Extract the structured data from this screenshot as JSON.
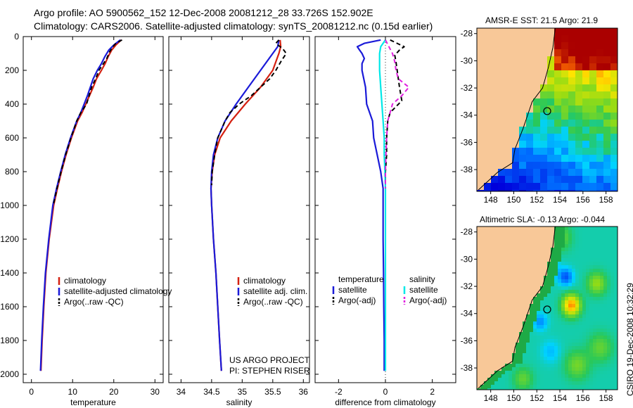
{
  "header": {
    "line1": "Argo profile: AO 5900562_152 12-Dec-2008 20081212_28 33.726S 152.902E",
    "line2": "Climatology: CARS2006. Satellite-adjusted climatology: synTS_20081212.nc (0.15d earlier)"
  },
  "footer": {
    "project": "US ARGO PROJECT",
    "pi": "PI: STEPHEN RISER",
    "stamp": "CSIRO 19-Dec-2008 10:32:29"
  },
  "colors": {
    "climatology": "#d42010",
    "satellite": "#1a1ad8",
    "argo": "#000000",
    "sat_sal": "#00e8e8",
    "argo_sal": "#e020e0",
    "land": "#f8c898"
  },
  "chart_data": [
    {
      "type": "line",
      "id": "temperature",
      "xlabel": "temperature",
      "xlim": [
        -2,
        32
      ],
      "ylim": [
        2050,
        0
      ],
      "x_ticks": [
        "0",
        "10",
        "20",
        "30"
      ],
      "x_tick_values": [
        0,
        10,
        20,
        30
      ],
      "y_ticks": [
        "0",
        "200",
        "400",
        "600",
        "800",
        "1000",
        "1200",
        "1400",
        "1600",
        "1800",
        "2000"
      ],
      "y_tick_values": [
        0,
        200,
        400,
        600,
        800,
        1000,
        1200,
        1400,
        1600,
        1800,
        2000
      ],
      "legend": [
        "climatology",
        "satellite-adjusted climatology",
        "Argo(..raw -QC)"
      ],
      "series": [
        {
          "name": "climatology",
          "color": "#d42010",
          "dash": "",
          "depth": [
            20,
            50,
            80,
            120,
            160,
            200,
            250,
            300,
            350,
            400,
            450,
            500,
            600,
            700,
            800,
            900,
            1000,
            1200,
            1400,
            1600,
            1800,
            1980
          ],
          "values": [
            21.8,
            20.5,
            19.5,
            18.6,
            17.9,
            17.0,
            15.8,
            15.0,
            14.1,
            13.2,
            12.3,
            11.2,
            9.7,
            8.4,
            7.3,
            6.3,
            5.4,
            4.3,
            3.5,
            3.0,
            2.6,
            2.3
          ]
        },
        {
          "name": "satellite-adjusted climatology",
          "color": "#1a1ad8",
          "dash": "",
          "depth": [
            20,
            50,
            80,
            120,
            160,
            200,
            250,
            300,
            350,
            400,
            450,
            500,
            600,
            700,
            800,
            900,
            1000,
            1200,
            1400,
            1600,
            1800,
            1980
          ],
          "values": [
            21.6,
            20.0,
            18.8,
            17.8,
            17.0,
            16.0,
            15.0,
            14.3,
            13.6,
            12.8,
            12.0,
            11.0,
            9.5,
            8.2,
            7.1,
            6.1,
            5.2,
            4.2,
            3.4,
            2.9,
            2.5,
            2.2
          ]
        },
        {
          "name": "Argo(..raw -QC)",
          "color": "#000000",
          "dash": "6,4",
          "depth": [
            20,
            40,
            60,
            90,
            130,
            160,
            200,
            250,
            300,
            350,
            400,
            450,
            500,
            600,
            700,
            800,
            900,
            1000
          ],
          "values": [
            22.0,
            20.5,
            19.8,
            19.0,
            18.3,
            17.5,
            16.4,
            15.6,
            14.6,
            14.0,
            13.4,
            12.0,
            11.0,
            9.6,
            8.3,
            7.2,
            6.2,
            5.3
          ]
        }
      ]
    },
    {
      "type": "line",
      "id": "salinity",
      "xlabel": "salinity",
      "xlim": [
        33.8,
        36.1
      ],
      "ylim": [
        2050,
        0
      ],
      "x_ticks": [
        "34",
        "34.5",
        "35",
        "35.5",
        "36"
      ],
      "x_tick_values": [
        34,
        34.5,
        35,
        35.5,
        36
      ],
      "legend": [
        "climatology",
        "satellite adj. clim.",
        "Argo(..raw -QC)"
      ],
      "series": [
        {
          "name": "climatology",
          "color": "#d42010",
          "dash": "",
          "depth": [
            20,
            60,
            100,
            200,
            300,
            400,
            500,
            600,
            700,
            800,
            900,
            1000,
            1200,
            1400,
            1600,
            1800,
            1980
          ],
          "values": [
            35.62,
            35.63,
            35.6,
            35.5,
            35.3,
            35.05,
            34.82,
            34.64,
            34.55,
            34.51,
            34.49,
            34.5,
            34.53,
            34.57,
            34.6,
            34.63,
            34.66
          ]
        },
        {
          "name": "satellite adj. clim.",
          "color": "#1a1ad8",
          "dash": "",
          "depth": [
            20,
            60,
            100,
            200,
            300,
            400,
            500,
            600,
            700,
            800,
            900,
            1000,
            1200,
            1400,
            1600,
            1800,
            1980
          ],
          "values": [
            35.6,
            35.58,
            35.5,
            35.3,
            35.1,
            34.9,
            34.72,
            34.6,
            34.53,
            34.5,
            34.49,
            34.5,
            34.53,
            34.57,
            34.6,
            34.63,
            34.66
          ]
        },
        {
          "name": "Argo(..raw -QC)",
          "color": "#000000",
          "dash": "6,4",
          "depth": [
            20,
            40,
            60,
            80,
            100,
            150,
            200,
            250,
            300,
            350,
            400,
            450,
            500,
            600,
            700,
            800,
            880
          ],
          "values": [
            35.6,
            35.55,
            35.62,
            35.68,
            35.72,
            35.63,
            35.55,
            35.45,
            35.3,
            35.15,
            34.95,
            34.8,
            34.72,
            34.6,
            34.55,
            34.51,
            34.5
          ]
        }
      ]
    },
    {
      "type": "line",
      "id": "difference",
      "xlabel": "difference from climatology",
      "xlim": [
        -3.0,
        3.0
      ],
      "ylim": [
        2050,
        0
      ],
      "x_ticks": [
        "-2",
        "0",
        "2"
      ],
      "x_tick_values": [
        -2,
        0,
        2
      ],
      "legend_headers": [
        "temperature",
        "salinity"
      ],
      "legend": [
        "satellite",
        "Argo(-adj)",
        "satellite",
        "Argo(-adj)"
      ],
      "series": [
        {
          "name": "temperature satellite",
          "color": "#1a1ad8",
          "dash": "",
          "depth": [
            20,
            40,
            60,
            80,
            100,
            130,
            160,
            200,
            300,
            400,
            500,
            600,
            700,
            800,
            900,
            1000,
            1200,
            1400,
            1600,
            1800,
            1980
          ],
          "values": [
            -0.2,
            -0.9,
            -1.2,
            -1.1,
            -1.0,
            -0.9,
            -1.0,
            -1.0,
            -0.85,
            -0.8,
            -0.55,
            -0.5,
            -0.35,
            -0.2,
            -0.1,
            -0.1,
            -0.1,
            -0.08,
            -0.07,
            -0.05,
            -0.05
          ]
        },
        {
          "name": "temperature Argo(-adj)",
          "color": "#000000",
          "dash": "6,4",
          "depth": [
            20,
            40,
            60,
            80,
            110,
            150,
            200,
            300,
            380,
            450,
            500,
            600,
            700,
            800,
            900
          ],
          "values": [
            0.2,
            0.5,
            0.8,
            0.6,
            0.4,
            0.45,
            0.5,
            0.6,
            0.7,
            0.2,
            0.1,
            0.05,
            0.05,
            0.0,
            0.0
          ]
        },
        {
          "name": "salinity satellite",
          "color": "#00e8e8",
          "dash": "",
          "depth": [
            20,
            60,
            100,
            200,
            300,
            400,
            500,
            600,
            700,
            800,
            900,
            1000,
            1200,
            1400,
            1600,
            1800,
            1980
          ],
          "values": [
            0.0,
            -0.2,
            -0.25,
            -0.25,
            -0.2,
            -0.15,
            -0.1,
            -0.05,
            -0.05,
            -0.02,
            0.0,
            0.0,
            0.0,
            0.0,
            0.0,
            0.0,
            0.0
          ]
        },
        {
          "name": "salinity Argo(-adj)",
          "color": "#e020e0",
          "dash": "6,4",
          "depth": [
            20,
            60,
            100,
            150,
            200,
            250,
            300,
            350,
            400,
            500,
            600,
            700,
            800,
            900
          ],
          "values": [
            0.0,
            0.15,
            0.3,
            0.4,
            0.45,
            0.55,
            1.0,
            0.7,
            0.3,
            0.1,
            0.05,
            0.02,
            0.0,
            0.0
          ]
        }
      ]
    },
    {
      "type": "heatmap",
      "id": "sst-map",
      "title": "AMSR-E SST: 21.5 Argo: 21.9",
      "xlim": [
        146.8,
        159.0
      ],
      "ylim": [
        -39.6,
        -27.6
      ],
      "x_ticks": [
        "148",
        "150",
        "152",
        "154",
        "156",
        "158"
      ],
      "x_tick_values": [
        148,
        150,
        152,
        154,
        156,
        158
      ],
      "y_ticks": [
        "-28",
        "-30",
        "-32",
        "-34",
        "-36",
        "-38"
      ],
      "y_tick_values": [
        -28,
        -30,
        -32,
        -34,
        -36,
        -38
      ],
      "float_position": [
        152.9,
        -33.7
      ]
    },
    {
      "type": "heatmap",
      "id": "sla-map",
      "title": "Altimetric SLA: -0.13 Argo: -0.044",
      "xlim": [
        146.8,
        159.0
      ],
      "ylim": [
        -39.6,
        -27.6
      ],
      "x_ticks": [
        "148",
        "150",
        "152",
        "154",
        "156",
        "158"
      ],
      "x_tick_values": [
        148,
        150,
        152,
        154,
        156,
        158
      ],
      "y_ticks": [
        "-28",
        "-30",
        "-32",
        "-34",
        "-36",
        "-38"
      ],
      "y_tick_values": [
        -28,
        -30,
        -32,
        -34,
        -36,
        -38
      ],
      "float_position": [
        152.9,
        -33.7
      ]
    }
  ]
}
